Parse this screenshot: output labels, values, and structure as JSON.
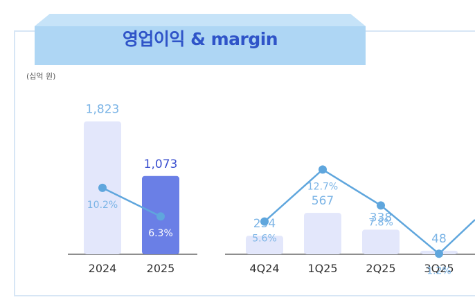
{
  "banner": {
    "title": "영업이익 & margin"
  },
  "unit_label": "(십억 원)",
  "colors": {
    "bar_light": "#e3e7fb",
    "bar_accent": "#6a7fe6",
    "line": "#5fa6dd",
    "value_text_light": "#7bb4e6",
    "value_text_accent": "#3a4fcf",
    "banner_fill": "#aed6f4"
  },
  "chart_data": [
    {
      "type": "bar",
      "categories": [
        "2024",
        "2025"
      ],
      "series": [
        {
          "values": [
            1823,
            1073
          ]
        }
      ],
      "value_labels": [
        "1,823",
        "1,073"
      ],
      "line_series": {
        "values": [
          10.2,
          6.3
        ]
      },
      "line_labels": [
        "10.2%",
        "6.3%"
      ],
      "highlight_index": 1
    },
    {
      "type": "bar",
      "categories": [
        "4Q24",
        "1Q25",
        "2Q25",
        "3Q25"
      ],
      "series": [
        {
          "values": [
            254,
            567,
            338,
            48
          ]
        }
      ],
      "value_labels": [
        "254",
        "567",
        "338",
        "48"
      ],
      "line_series": {
        "values": [
          5.6,
          12.7,
          7.8,
          1.2
        ]
      },
      "line_labels": [
        "5.6%",
        "12.7%",
        "7.8%",
        "1.2%"
      ]
    }
  ]
}
